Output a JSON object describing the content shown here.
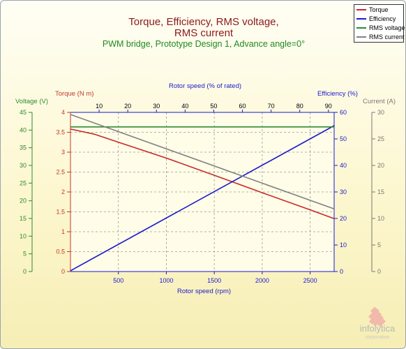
{
  "chart_data": {
    "type": "line",
    "title_line1": "Torque, Efficiency, RMS voltage,",
    "title_line2": "RMS current",
    "subtitle": "PWM bridge, Prototype Design 1, Advance angle=0°",
    "xlabel": "Rotor speed (rpm)",
    "x2label": "Rotor speed (% of rated)",
    "xlim": [
      0,
      2750
    ],
    "x_ticks": [
      500,
      1000,
      1500,
      2000,
      2500
    ],
    "x2lim": [
      0,
      92
    ],
    "x2_ticks": [
      10,
      20,
      30,
      40,
      50,
      60,
      70,
      80,
      90
    ],
    "axes": {
      "torque": {
        "label": "Torque (N m)",
        "lim": [
          0,
          4
        ],
        "ticks": [
          0,
          0.5,
          1,
          1.5,
          2,
          2.5,
          3,
          3.5,
          4
        ],
        "color": "#c0392b"
      },
      "voltage": {
        "label": "Voltage (V)",
        "lim": [
          0,
          45
        ],
        "ticks": [
          0,
          5,
          10,
          15,
          20,
          25,
          30,
          35,
          40,
          45
        ],
        "color": "#2e8b2e"
      },
      "efficiency": {
        "label": "Efficiency (%)",
        "lim": [
          0,
          60
        ],
        "ticks": [
          0,
          10,
          20,
          30,
          40,
          50,
          60
        ],
        "color": "#1a1acc"
      },
      "current": {
        "label": "Current (A)",
        "lim": [
          0,
          30
        ],
        "ticks": [
          0,
          5,
          10,
          15,
          20,
          25,
          30
        ],
        "color": "#777777"
      }
    },
    "grid": true,
    "legend_position": "top-right",
    "series": [
      {
        "name": "Torque",
        "axis": "torque",
        "color": "#c62828",
        "x": [
          0,
          250,
          500,
          1000,
          1500,
          2000,
          2500,
          2750
        ],
        "y": [
          3.58,
          3.45,
          3.25,
          2.85,
          2.42,
          1.98,
          1.55,
          1.33
        ]
      },
      {
        "name": "Efficiency",
        "axis": "efficiency",
        "color": "#1a1acc",
        "x": [
          0,
          2750
        ],
        "y": [
          0.3,
          55.0
        ]
      },
      {
        "name": "RMS voltage",
        "axis": "voltage",
        "color": "#2e8b2e",
        "x": [
          0,
          2750
        ],
        "y": [
          40.9,
          40.9
        ]
      },
      {
        "name": "RMS current",
        "axis": "current",
        "color": "#808080",
        "x": [
          0,
          2750
        ],
        "y": [
          29.6,
          11.8
        ]
      }
    ]
  },
  "logo": {
    "text": "infolytica",
    "sub": "corporation"
  }
}
